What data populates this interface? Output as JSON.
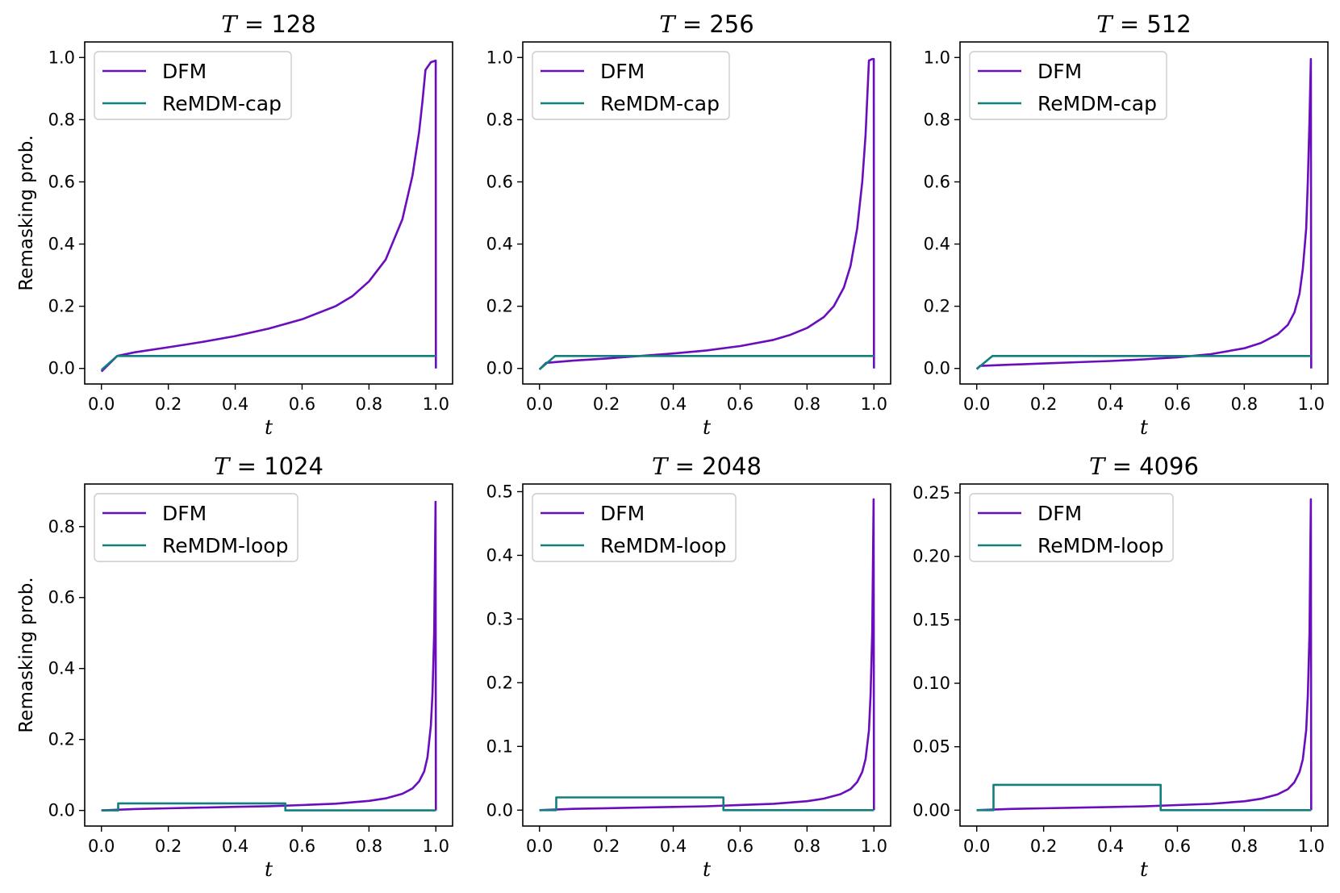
{
  "figure": {
    "colors": {
      "dfm": "#6a0dbd",
      "remdm": "#127f7f"
    }
  },
  "chart_data": [
    {
      "type": "line",
      "title_var": "T",
      "title_val": "128",
      "title": "T = 128",
      "xlabel": "t",
      "ylabel": "Remasking prob.",
      "xlim": [
        0,
        1
      ],
      "ylim": [
        -0.05,
        1.05
      ],
      "xticks": [
        0.0,
        0.2,
        0.4,
        0.6,
        0.8,
        1.0
      ],
      "xtick_labels": [
        "0.0",
        "0.2",
        "0.4",
        "0.6",
        "0.8",
        "1.0"
      ],
      "yticks": [
        0.0,
        0.2,
        0.4,
        0.6,
        0.8,
        1.0
      ],
      "ytick_labels": [
        "0.0",
        "0.2",
        "0.4",
        "0.6",
        "0.8",
        "1.0"
      ],
      "legend": [
        "DFM",
        "ReMDM-cap"
      ],
      "series": [
        {
          "name": "DFM",
          "x": [
            0.0,
            0.047,
            0.1,
            0.2,
            0.3,
            0.4,
            0.5,
            0.6,
            0.7,
            0.75,
            0.8,
            0.85,
            0.9,
            0.93,
            0.95,
            0.96,
            0.969,
            0.985,
            0.9995,
            1.0
          ],
          "y": [
            -0.01,
            0.04,
            0.052,
            0.068,
            0.085,
            0.104,
            0.128,
            0.158,
            0.2,
            0.232,
            0.28,
            0.35,
            0.48,
            0.62,
            0.76,
            0.86,
            0.96,
            0.985,
            0.99,
            0.0
          ]
        },
        {
          "name": "ReMDM-cap",
          "x": [
            0.0,
            0.047,
            1.0
          ],
          "y": [
            -0.005,
            0.04,
            0.04
          ]
        }
      ]
    },
    {
      "type": "line",
      "title_var": "T",
      "title_val": "256",
      "title": "T = 256",
      "xlabel": "t",
      "ylabel": "",
      "xlim": [
        0,
        1
      ],
      "ylim": [
        -0.05,
        1.05
      ],
      "xticks": [
        0.0,
        0.2,
        0.4,
        0.6,
        0.8,
        1.0
      ],
      "xtick_labels": [
        "0.0",
        "0.2",
        "0.4",
        "0.6",
        "0.8",
        "1.0"
      ],
      "yticks": [
        0.0,
        0.2,
        0.4,
        0.6,
        0.8,
        1.0
      ],
      "ytick_labels": [
        "0.0",
        "0.2",
        "0.4",
        "0.6",
        "0.8",
        "1.0"
      ],
      "legend": [
        "DFM",
        "ReMDM-cap"
      ],
      "series": [
        {
          "name": "DFM",
          "x": [
            0.0,
            0.02,
            0.1,
            0.2,
            0.3,
            0.4,
            0.5,
            0.6,
            0.7,
            0.75,
            0.8,
            0.85,
            0.88,
            0.91,
            0.93,
            0.95,
            0.965,
            0.975,
            0.985,
            0.995,
            0.9995,
            1.0
          ],
          "y": [
            -0.003,
            0.018,
            0.025,
            0.032,
            0.04,
            0.048,
            0.058,
            0.072,
            0.092,
            0.108,
            0.13,
            0.165,
            0.2,
            0.26,
            0.33,
            0.45,
            0.6,
            0.75,
            0.99,
            0.995,
            0.995,
            0.0
          ]
        },
        {
          "name": "ReMDM-cap",
          "x": [
            0.0,
            0.047,
            1.0
          ],
          "y": [
            -0.003,
            0.04,
            0.04
          ]
        }
      ]
    },
    {
      "type": "line",
      "title_var": "T",
      "title_val": "512",
      "title": "T = 512",
      "xlabel": "t",
      "ylabel": "",
      "xlim": [
        0,
        1
      ],
      "ylim": [
        -0.05,
        1.05
      ],
      "xticks": [
        0.0,
        0.2,
        0.4,
        0.6,
        0.8,
        1.0
      ],
      "xtick_labels": [
        "0.0",
        "0.2",
        "0.4",
        "0.6",
        "0.8",
        "1.0"
      ],
      "yticks": [
        0.0,
        0.2,
        0.4,
        0.6,
        0.8,
        1.0
      ],
      "ytick_labels": [
        "0.0",
        "0.2",
        "0.4",
        "0.6",
        "0.8",
        "1.0"
      ],
      "legend": [
        "DFM",
        "ReMDM-cap"
      ],
      "series": [
        {
          "name": "DFM",
          "x": [
            0.0,
            0.01,
            0.1,
            0.2,
            0.3,
            0.4,
            0.5,
            0.6,
            0.7,
            0.8,
            0.85,
            0.9,
            0.93,
            0.95,
            0.965,
            0.975,
            0.985,
            0.99,
            0.995,
            0.999,
            1.0
          ],
          "y": [
            -0.002,
            0.008,
            0.012,
            0.016,
            0.02,
            0.024,
            0.029,
            0.036,
            0.046,
            0.065,
            0.082,
            0.11,
            0.14,
            0.18,
            0.24,
            0.32,
            0.45,
            0.6,
            0.8,
            0.995,
            0.0
          ]
        },
        {
          "name": "ReMDM-cap",
          "x": [
            0.0,
            0.047,
            1.0
          ],
          "y": [
            -0.002,
            0.04,
            0.04
          ]
        }
      ]
    },
    {
      "type": "line",
      "title_var": "T",
      "title_val": "1024",
      "title": "T = 1024",
      "xlabel": "t",
      "ylabel": "Remasking prob.",
      "xlim": [
        0,
        1
      ],
      "ylim": [
        -0.044,
        0.92
      ],
      "xticks": [
        0.0,
        0.2,
        0.4,
        0.6,
        0.8,
        1.0
      ],
      "xtick_labels": [
        "0.0",
        "0.2",
        "0.4",
        "0.6",
        "0.8",
        "1.0"
      ],
      "yticks": [
        0.0,
        0.2,
        0.4,
        0.6,
        0.8
      ],
      "ytick_labels": [
        "0.0",
        "0.2",
        "0.4",
        "0.6",
        "0.8"
      ],
      "legend": [
        "DFM",
        "ReMDM-loop"
      ],
      "series": [
        {
          "name": "DFM",
          "x": [
            0.0,
            0.1,
            0.2,
            0.3,
            0.4,
            0.5,
            0.6,
            0.7,
            0.8,
            0.85,
            0.9,
            0.93,
            0.95,
            0.965,
            0.975,
            0.985,
            0.99,
            0.995,
            0.999,
            1.0
          ],
          "y": [
            0.0,
            0.004,
            0.006,
            0.008,
            0.01,
            0.012,
            0.015,
            0.019,
            0.027,
            0.034,
            0.047,
            0.062,
            0.082,
            0.11,
            0.15,
            0.24,
            0.33,
            0.5,
            0.87,
            0.0
          ]
        },
        {
          "name": "ReMDM-loop",
          "x": [
            0.0,
            0.05,
            0.05,
            0.55,
            0.55,
            1.0
          ],
          "y": [
            0.0,
            0.0,
            0.02,
            0.02,
            0.0,
            0.0
          ]
        }
      ]
    },
    {
      "type": "line",
      "title_var": "T",
      "title_val": "2048",
      "title": "T = 2048",
      "xlabel": "t",
      "ylabel": "",
      "xlim": [
        0,
        1
      ],
      "ylim": [
        -0.025,
        0.512
      ],
      "xticks": [
        0.0,
        0.2,
        0.4,
        0.6,
        0.8,
        1.0
      ],
      "xtick_labels": [
        "0.0",
        "0.2",
        "0.4",
        "0.6",
        "0.8",
        "1.0"
      ],
      "yticks": [
        0.0,
        0.1,
        0.2,
        0.3,
        0.4,
        0.5
      ],
      "ytick_labels": [
        "0.0",
        "0.1",
        "0.2",
        "0.3",
        "0.4",
        "0.5"
      ],
      "legend": [
        "DFM",
        "ReMDM-loop"
      ],
      "series": [
        {
          "name": "DFM",
          "x": [
            0.0,
            0.1,
            0.2,
            0.3,
            0.4,
            0.5,
            0.6,
            0.7,
            0.8,
            0.85,
            0.9,
            0.93,
            0.95,
            0.965,
            0.975,
            0.985,
            0.99,
            0.995,
            0.999,
            1.0
          ],
          "y": [
            0.0,
            0.002,
            0.003,
            0.004,
            0.005,
            0.006,
            0.008,
            0.01,
            0.014,
            0.018,
            0.025,
            0.033,
            0.044,
            0.06,
            0.08,
            0.125,
            0.18,
            0.28,
            0.488,
            0.0
          ]
        },
        {
          "name": "ReMDM-loop",
          "x": [
            0.0,
            0.05,
            0.05,
            0.55,
            0.55,
            1.0
          ],
          "y": [
            0.0,
            0.0,
            0.02,
            0.02,
            0.0,
            0.0
          ]
        }
      ]
    },
    {
      "type": "line",
      "title_var": "T",
      "title_val": "4096",
      "title": "T = 4096",
      "xlabel": "t",
      "ylabel": "",
      "xlim": [
        0,
        1
      ],
      "ylim": [
        -0.0125,
        0.257
      ],
      "xticks": [
        0.0,
        0.2,
        0.4,
        0.6,
        0.8,
        1.0
      ],
      "xtick_labels": [
        "0.0",
        "0.2",
        "0.4",
        "0.6",
        "0.8",
        "1.0"
      ],
      "yticks": [
        0.0,
        0.05,
        0.1,
        0.15,
        0.2,
        0.25
      ],
      "ytick_labels": [
        "0.00",
        "0.05",
        "0.10",
        "0.15",
        "0.20",
        "0.25"
      ],
      "legend": [
        "DFM",
        "ReMDM-loop"
      ],
      "series": [
        {
          "name": "DFM",
          "x": [
            0.0,
            0.1,
            0.2,
            0.3,
            0.4,
            0.5,
            0.6,
            0.7,
            0.8,
            0.85,
            0.9,
            0.93,
            0.95,
            0.965,
            0.975,
            0.985,
            0.99,
            0.995,
            0.999,
            1.0
          ],
          "y": [
            0.0,
            0.001,
            0.0015,
            0.002,
            0.0025,
            0.003,
            0.004,
            0.005,
            0.007,
            0.009,
            0.0125,
            0.0165,
            0.022,
            0.03,
            0.04,
            0.063,
            0.09,
            0.14,
            0.245,
            0.0
          ]
        },
        {
          "name": "ReMDM-loop",
          "x": [
            0.0,
            0.05,
            0.05,
            0.55,
            0.55,
            1.0
          ],
          "y": [
            0.0,
            0.0,
            0.02,
            0.02,
            0.0,
            0.0
          ]
        }
      ]
    }
  ]
}
